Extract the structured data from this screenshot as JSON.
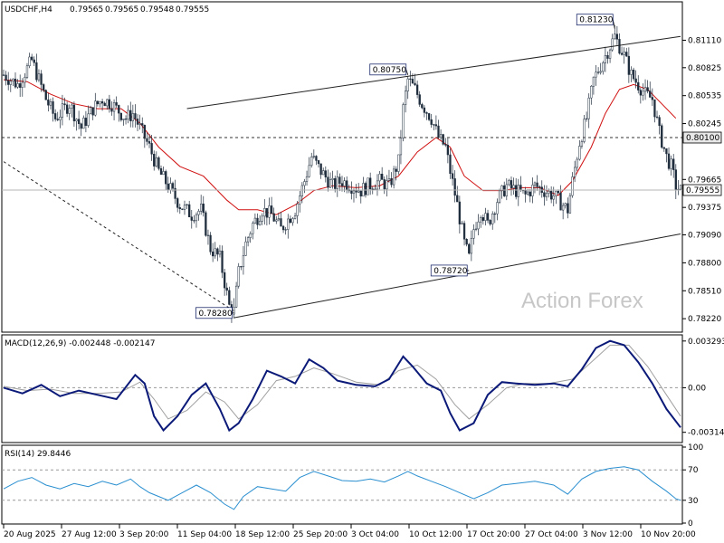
{
  "chart_data": {
    "type": "candlestick",
    "symbol_header": "USDCHF,H4",
    "ohlc_values": [
      "0.79565",
      "0.79565",
      "0.79548",
      "0.79555"
    ],
    "price_axis": {
      "ticks": [
        "0.81110",
        "0.80825",
        "0.80535",
        "0.80245",
        "0.79665",
        "0.79375",
        "0.79090",
        "0.78800",
        "0.78510",
        "0.78220"
      ],
      "range": [
        0.7809,
        0.8149
      ]
    },
    "current_price": {
      "value": 0.79555,
      "label": "0.79555"
    },
    "level_line": {
      "value": 0.801,
      "label": "0.80100"
    },
    "annotations": [
      {
        "label": "0.78280",
        "value": 0.7828
      },
      {
        "label": "0.80750",
        "value": 0.8075
      },
      {
        "label": "0.78720",
        "value": 0.7872
      },
      {
        "label": "0.81230",
        "value": 0.8123
      }
    ],
    "time_axis": [
      "20 Aug 2025",
      "27 Aug 12:00",
      "3 Sep 20:00",
      "11 Sep 04:00",
      "18 Sep 12:00",
      "25 Sep 20:00",
      "3 Oct 04:00",
      "10 Oct 12:00",
      "17 Oct 20:00",
      "27 Oct 04:00",
      "3 Nov 12:00",
      "10 Nov 20:00"
    ],
    "price_path": [
      [
        0,
        0.8075
      ],
      [
        6,
        0.8065
      ],
      [
        12,
        0.809
      ],
      [
        18,
        0.805
      ],
      [
        22,
        0.803
      ],
      [
        28,
        0.8045
      ],
      [
        33,
        0.802
      ],
      [
        38,
        0.804
      ],
      [
        42,
        0.805
      ],
      [
        46,
        0.8045
      ],
      [
        52,
        0.803
      ],
      [
        55,
        0.8035
      ],
      [
        58,
        0.802
      ],
      [
        62,
        0.8
      ],
      [
        66,
        0.7975
      ],
      [
        70,
        0.796
      ],
      [
        75,
        0.794
      ],
      [
        80,
        0.793
      ],
      [
        84,
        0.7935
      ],
      [
        88,
        0.7895
      ],
      [
        92,
        0.7885
      ],
      [
        96,
        0.7835
      ],
      [
        98,
        0.783
      ],
      [
        100,
        0.787
      ],
      [
        103,
        0.79
      ],
      [
        106,
        0.792
      ],
      [
        110,
        0.7935
      ],
      [
        114,
        0.793
      ],
      [
        118,
        0.7915
      ],
      [
        121,
        0.7925
      ],
      [
        124,
        0.7935
      ],
      [
        128,
        0.7965
      ],
      [
        131,
        0.799
      ],
      [
        135,
        0.7975
      ],
      [
        140,
        0.796
      ],
      [
        144,
        0.7965
      ],
      [
        148,
        0.796
      ],
      [
        152,
        0.7955
      ],
      [
        155,
        0.796
      ],
      [
        160,
        0.7965
      ],
      [
        164,
        0.796
      ],
      [
        168,
        0.7985
      ],
      [
        170,
        0.804
      ],
      [
        172,
        0.807
      ],
      [
        175,
        0.806
      ],
      [
        178,
        0.8045
      ],
      [
        182,
        0.803
      ],
      [
        185,
        0.801
      ],
      [
        188,
        0.8
      ],
      [
        190,
        0.7975
      ],
      [
        193,
        0.794
      ],
      [
        196,
        0.79
      ],
      [
        198,
        0.7885
      ],
      [
        200,
        0.7915
      ],
      [
        203,
        0.7935
      ],
      [
        206,
        0.792
      ],
      [
        210,
        0.7945
      ],
      [
        214,
        0.796
      ],
      [
        218,
        0.7955
      ],
      [
        222,
        0.795
      ],
      [
        226,
        0.796
      ],
      [
        230,
        0.7955
      ],
      [
        234,
        0.795
      ],
      [
        238,
        0.794
      ],
      [
        240,
        0.7935
      ],
      [
        242,
        0.7965
      ],
      [
        245,
        0.8005
      ],
      [
        248,
        0.803
      ],
      [
        251,
        0.807
      ],
      [
        254,
        0.8085
      ],
      [
        257,
        0.81
      ],
      [
        260,
        0.8115
      ],
      [
        262,
        0.8105
      ],
      [
        264,
        0.8095
      ],
      [
        267,
        0.8075
      ],
      [
        270,
        0.8065
      ],
      [
        273,
        0.8055
      ],
      [
        276,
        0.805
      ],
      [
        279,
        0.8015
      ],
      [
        282,
        0.799
      ],
      [
        284,
        0.798
      ],
      [
        286,
        0.796
      ],
      [
        288,
        0.7955
      ]
    ],
    "moving_average_path": [
      [
        0,
        0.807
      ],
      [
        10,
        0.8068
      ],
      [
        20,
        0.8055
      ],
      [
        30,
        0.8045
      ],
      [
        40,
        0.804
      ],
      [
        50,
        0.804
      ],
      [
        58,
        0.8025
      ],
      [
        66,
        0.8
      ],
      [
        75,
        0.798
      ],
      [
        85,
        0.797
      ],
      [
        95,
        0.7945
      ],
      [
        100,
        0.7935
      ],
      [
        108,
        0.7935
      ],
      [
        116,
        0.793
      ],
      [
        124,
        0.794
      ],
      [
        132,
        0.7955
      ],
      [
        140,
        0.796
      ],
      [
        150,
        0.7958
      ],
      [
        160,
        0.796
      ],
      [
        168,
        0.797
      ],
      [
        176,
        0.7995
      ],
      [
        184,
        0.801
      ],
      [
        190,
        0.8
      ],
      [
        196,
        0.797
      ],
      [
        204,
        0.7955
      ],
      [
        212,
        0.7955
      ],
      [
        220,
        0.7958
      ],
      [
        228,
        0.7958
      ],
      [
        236,
        0.795
      ],
      [
        242,
        0.7965
      ],
      [
        250,
        0.8
      ],
      [
        256,
        0.8035
      ],
      [
        262,
        0.806
      ],
      [
        268,
        0.8065
      ],
      [
        274,
        0.806
      ],
      [
        280,
        0.8045
      ],
      [
        286,
        0.803
      ]
    ],
    "channel_upper": [
      [
        78,
        0.804
      ],
      [
        288,
        0.8115
      ]
    ],
    "channel_lower": [
      [
        98,
        0.7823
      ],
      [
        288,
        0.791
      ]
    ],
    "dashed_trend": [
      [
        0,
        0.7985
      ],
      [
        98,
        0.783
      ]
    ],
    "watermark": "Action Forex",
    "macd": {
      "label": "MACD(12,26,9) -0.002448 -0.002147",
      "ticks": [
        "0.003293",
        "0.00",
        "-0.003142"
      ],
      "range": [
        -0.0038,
        0.0036
      ],
      "main_path": [
        [
          0,
          0.0
        ],
        [
          8,
          -0.0004
        ],
        [
          16,
          0.0002
        ],
        [
          24,
          -0.0006
        ],
        [
          32,
          -0.0002
        ],
        [
          40,
          -0.0005
        ],
        [
          48,
          -0.0008
        ],
        [
          56,
          0.0009
        ],
        [
          60,
          0.0003
        ],
        [
          64,
          -0.002
        ],
        [
          68,
          -0.003
        ],
        [
          74,
          -0.002
        ],
        [
          80,
          -0.0005
        ],
        [
          86,
          0.0003
        ],
        [
          92,
          -0.0015
        ],
        [
          96,
          -0.003
        ],
        [
          100,
          -0.0025
        ],
        [
          106,
          -0.0008
        ],
        [
          112,
          0.0012
        ],
        [
          118,
          0.0008
        ],
        [
          124,
          0.0003
        ],
        [
          130,
          0.002
        ],
        [
          136,
          0.0014
        ],
        [
          142,
          0.0005
        ],
        [
          150,
          0.0002
        ],
        [
          158,
          0.0001
        ],
        [
          164,
          0.0006
        ],
        [
          170,
          0.0022
        ],
        [
          174,
          0.0015
        ],
        [
          180,
          0.0003
        ],
        [
          186,
          -0.0002
        ],
        [
          190,
          -0.0018
        ],
        [
          194,
          -0.003
        ],
        [
          200,
          -0.0025
        ],
        [
          206,
          -0.0005
        ],
        [
          212,
          0.0004
        ],
        [
          218,
          0.0003
        ],
        [
          226,
          0.0002
        ],
        [
          234,
          0.0003
        ],
        [
          240,
          0.0001
        ],
        [
          246,
          0.0013
        ],
        [
          252,
          0.0028
        ],
        [
          258,
          0.0033
        ],
        [
          264,
          0.003
        ],
        [
          270,
          0.0018
        ],
        [
          276,
          0.0003
        ],
        [
          282,
          -0.0015
        ],
        [
          288,
          -0.0028
        ]
      ],
      "signal_path": [
        [
          0,
          0.0001
        ],
        [
          10,
          -0.0002
        ],
        [
          20,
          -0.0001
        ],
        [
          30,
          -0.0004
        ],
        [
          40,
          -0.0004
        ],
        [
          50,
          -0.0003
        ],
        [
          58,
          0.0004
        ],
        [
          64,
          -0.0008
        ],
        [
          70,
          -0.0022
        ],
        [
          78,
          -0.0016
        ],
        [
          86,
          -0.0003
        ],
        [
          94,
          -0.001
        ],
        [
          100,
          -0.0022
        ],
        [
          108,
          -0.0012
        ],
        [
          116,
          0.0005
        ],
        [
          124,
          0.0008
        ],
        [
          132,
          0.0014
        ],
        [
          140,
          0.001
        ],
        [
          150,
          0.0004
        ],
        [
          160,
          0.0002
        ],
        [
          168,
          0.0012
        ],
        [
          176,
          0.0016
        ],
        [
          184,
          0.0006
        ],
        [
          192,
          -0.0012
        ],
        [
          198,
          -0.0022
        ],
        [
          206,
          -0.0012
        ],
        [
          214,
          0.0
        ],
        [
          222,
          0.0003
        ],
        [
          232,
          0.0003
        ],
        [
          242,
          0.0006
        ],
        [
          250,
          0.0018
        ],
        [
          258,
          0.003
        ],
        [
          266,
          0.003
        ],
        [
          274,
          0.0015
        ],
        [
          282,
          -0.0005
        ],
        [
          288,
          -0.002
        ]
      ]
    },
    "rsi": {
      "label": "RSI(14) 29.8446",
      "ticks": [
        "100",
        "70",
        "30",
        "0"
      ],
      "range": [
        0,
        100
      ],
      "levels": [
        70,
        30
      ],
      "path": [
        [
          0,
          45
        ],
        [
          6,
          55
        ],
        [
          12,
          60
        ],
        [
          18,
          50
        ],
        [
          24,
          45
        ],
        [
          30,
          52
        ],
        [
          36,
          48
        ],
        [
          42,
          55
        ],
        [
          48,
          50
        ],
        [
          54,
          58
        ],
        [
          58,
          48
        ],
        [
          62,
          40
        ],
        [
          66,
          35
        ],
        [
          70,
          30
        ],
        [
          76,
          40
        ],
        [
          82,
          50
        ],
        [
          88,
          40
        ],
        [
          94,
          25
        ],
        [
          98,
          18
        ],
        [
          102,
          35
        ],
        [
          108,
          48
        ],
        [
          114,
          45
        ],
        [
          120,
          42
        ],
        [
          126,
          60
        ],
        [
          132,
          68
        ],
        [
          138,
          62
        ],
        [
          144,
          56
        ],
        [
          150,
          55
        ],
        [
          156,
          58
        ],
        [
          162,
          54
        ],
        [
          168,
          62
        ],
        [
          172,
          68
        ],
        [
          176,
          62
        ],
        [
          182,
          55
        ],
        [
          188,
          48
        ],
        [
          194,
          40
        ],
        [
          200,
          32
        ],
        [
          206,
          40
        ],
        [
          212,
          50
        ],
        [
          218,
          52
        ],
        [
          226,
          55
        ],
        [
          234,
          50
        ],
        [
          240,
          38
        ],
        [
          246,
          58
        ],
        [
          252,
          68
        ],
        [
          258,
          72
        ],
        [
          264,
          74
        ],
        [
          270,
          70
        ],
        [
          276,
          55
        ],
        [
          282,
          42
        ],
        [
          286,
          32
        ],
        [
          288,
          30
        ]
      ]
    }
  }
}
